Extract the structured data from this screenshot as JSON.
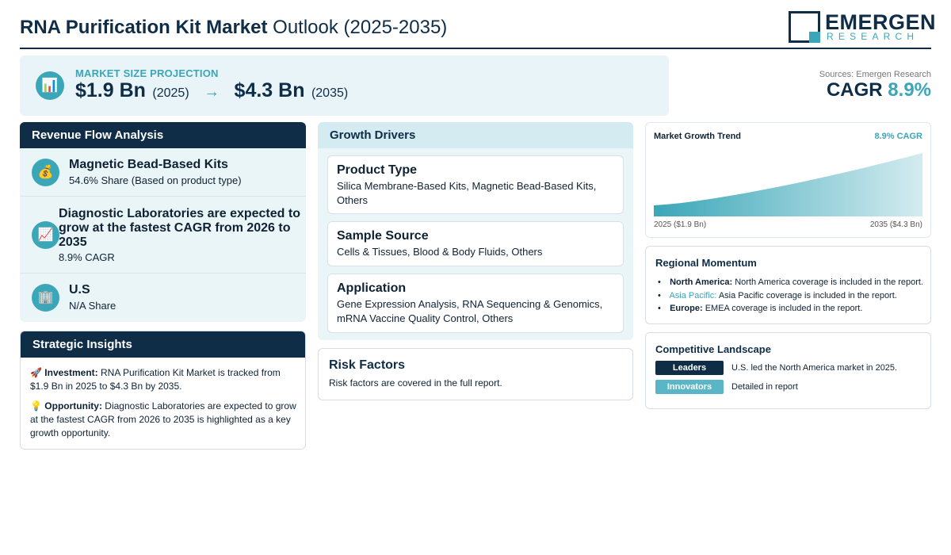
{
  "header": {
    "title_bold": "RNA Purification Kit Market",
    "title_rest": "Outlook (2025-2035)",
    "logo_name": "EMERGEN",
    "logo_sub": "RESEARCH"
  },
  "projection": {
    "label": "MARKET SIZE PROJECTION",
    "icon": "bar-chart-icon",
    "start_value": "$1.9 Bn",
    "start_year": "(2025)",
    "arrow": "→",
    "end_value": "$4.3 Bn",
    "end_year": "(2035)"
  },
  "sources": "Sources: Emergen Research",
  "cagr": {
    "label": "CAGR",
    "value": "8.9%"
  },
  "revenue_flow": {
    "title": "Revenue Flow Analysis",
    "items": [
      {
        "icon": "money-bag-icon",
        "glyph": "💰",
        "title": "Magnetic Bead-Based Kits",
        "sub": "54.6% Share (Based on product type)"
      },
      {
        "icon": "trending-up-icon",
        "glyph": "📈",
        "title": "Diagnostic Laboratories are expected to grow at the fastest CAGR from 2026 to 2035",
        "sub": "8.9% CAGR"
      },
      {
        "icon": "building-icon",
        "glyph": "🏢",
        "title": "U.S",
        "sub": "N/A Share"
      }
    ]
  },
  "insights": {
    "title": "Strategic Insights",
    "items": [
      {
        "glyph": "🚀",
        "label": "Investment:",
        "text": "RNA Purification Kit Market is tracked from $1.9 Bn in 2025 to $4.3 Bn by 2035."
      },
      {
        "glyph": "💡",
        "label": "Opportunity:",
        "text": "Diagnostic Laboratories are expected to grow at the fastest CAGR from 2026 to 2035 is highlighted as a key growth opportunity."
      }
    ]
  },
  "drivers": {
    "title": "Growth Drivers",
    "cards": [
      {
        "title": "Product Type",
        "text": "Silica Membrane-Based Kits, Magnetic Bead-Based Kits, Others"
      },
      {
        "title": "Sample Source",
        "text": "Cells & Tissues, Blood & Body Fluids, Others"
      },
      {
        "title": "Application",
        "text": "Gene Expression Analysis, RNA Sequencing & Genomics, mRNA Vaccine Quality Control, Others"
      }
    ]
  },
  "risk": {
    "title": "Risk Factors",
    "text": "Risk factors are covered in the full report."
  },
  "trend": {
    "title": "Market Growth Trend",
    "cagr": "8.9% CAGR",
    "left_label": "2025 ($1.9 Bn)",
    "right_label": "2035 ($4.3 Bn)",
    "color": "#3aa6b8"
  },
  "chart_data": {
    "type": "area",
    "title": "Market Growth Trend",
    "x": [
      2025,
      2035
    ],
    "values": [
      1.9,
      4.3
    ],
    "units": "USD Bn"
  },
  "regional": {
    "title": "Regional Momentum",
    "items": [
      {
        "label": "North America:",
        "text": "North America coverage is included in the report."
      },
      {
        "label": "Asia Pacific:",
        "text": "Asia Pacific coverage is included in the report."
      },
      {
        "label": "Europe:",
        "text": "EMEA coverage is included in the report."
      }
    ]
  },
  "competitive": {
    "title": "Competitive Landscape",
    "rows": [
      {
        "badge": "Leaders",
        "text": "U.S. led the North America market in 2025."
      },
      {
        "badge": "Innovators",
        "text": "Detailed in report"
      }
    ]
  },
  "colors": {
    "navy": "#0f2d47",
    "teal": "#3aa6b8",
    "panel_bg": "#eaf5f8"
  }
}
